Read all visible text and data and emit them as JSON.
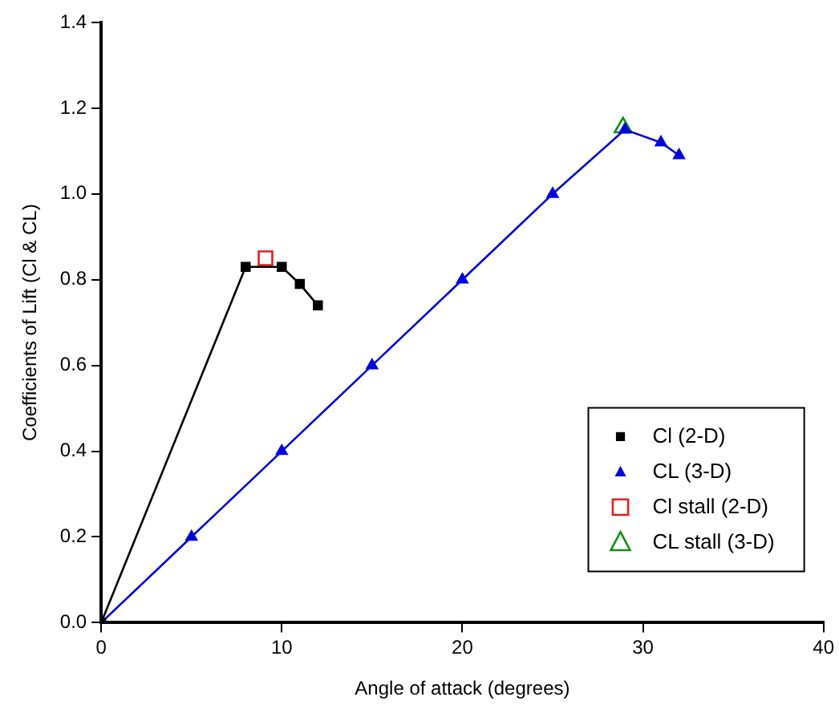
{
  "chart_data": {
    "type": "line",
    "xlabel": "Angle of attack (degrees)",
    "ylabel": "Coefficients of Lift (Cl & CL)",
    "xlim": [
      0,
      40
    ],
    "xticks": [
      0,
      10,
      20,
      30,
      40
    ],
    "ylim": [
      0,
      1.4
    ],
    "yticks": [
      {
        "value": 0,
        "label": "0.0"
      },
      {
        "value": 0.2,
        "label": "0.2"
      },
      {
        "value": 0.4,
        "label": "0.4"
      },
      {
        "value": 0.6,
        "label": "0.6"
      },
      {
        "value": 0.8,
        "label": "0.8"
      },
      {
        "value": 1,
        "label": "1.0"
      },
      {
        "value": 1.2,
        "label": "1.2"
      },
      {
        "value": 1.4,
        "label": "1.4"
      }
    ],
    "grid": false,
    "legend": "bottom right",
    "series": [
      {
        "name": "Cl (2-D)",
        "marker": "square",
        "color": "#000000",
        "x": [
          0,
          8,
          10,
          11,
          12
        ],
        "values": [
          0,
          0.83,
          0.83,
          0.79,
          0.74
        ]
      },
      {
        "name": "CL (3-D)",
        "marker": "triangle",
        "color": "#0000e0",
        "x": [
          0,
          5,
          10,
          15,
          20,
          25,
          29,
          31,
          32
        ],
        "values": [
          0,
          0.2,
          0.4,
          0.6,
          0.8,
          1.0,
          1.15,
          1.12,
          1.09
        ]
      },
      {
        "name": "Cl stall (2-D)",
        "type": "scatter",
        "marker": "square",
        "color": "#e02020",
        "x": [
          9.1
        ],
        "values": [
          0.85
        ]
      },
      {
        "name": "CL stall (3-D)",
        "type": "scatter",
        "marker": "triangle",
        "color": "#109010",
        "x": [
          28.9
        ],
        "values": [
          1.155
        ]
      }
    ]
  }
}
